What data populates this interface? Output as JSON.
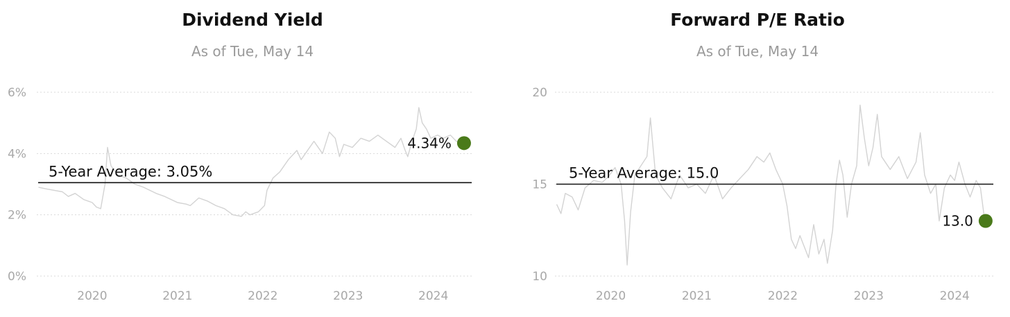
{
  "chart_data": [
    {
      "type": "line",
      "title": "Dividend Yield",
      "subtitle": "As of Tue, May 14",
      "y_ticks": [
        "0%",
        "2%",
        "4%",
        "6%"
      ],
      "y_tick_values": [
        0,
        2,
        4,
        6
      ],
      "ylim": [
        0,
        6
      ],
      "x_ticks": [
        "2020",
        "2021",
        "2022",
        "2023",
        "2024"
      ],
      "xlim": [
        2019.35,
        2024.45
      ],
      "grid": true,
      "series": [
        {
          "line_color": "#d3d3d3",
          "points": [
            [
              2019.37,
              2.9
            ],
            [
              2019.45,
              2.85
            ],
            [
              2019.55,
              2.8
            ],
            [
              2019.65,
              2.75
            ],
            [
              2019.72,
              2.6
            ],
            [
              2019.8,
              2.7
            ],
            [
              2019.9,
              2.5
            ],
            [
              2020.0,
              2.4
            ],
            [
              2020.05,
              2.25
            ],
            [
              2020.1,
              2.2
            ],
            [
              2020.15,
              3.0
            ],
            [
              2020.18,
              4.2
            ],
            [
              2020.22,
              3.6
            ],
            [
              2020.3,
              3.3
            ],
            [
              2020.4,
              3.2
            ],
            [
              2020.5,
              3.0
            ],
            [
              2020.6,
              2.9
            ],
            [
              2020.75,
              2.7
            ],
            [
              2020.85,
              2.6
            ],
            [
              2021.0,
              2.4
            ],
            [
              2021.1,
              2.35
            ],
            [
              2021.15,
              2.3
            ],
            [
              2021.25,
              2.55
            ],
            [
              2021.35,
              2.45
            ],
            [
              2021.45,
              2.3
            ],
            [
              2021.55,
              2.2
            ],
            [
              2021.65,
              2.0
            ],
            [
              2021.75,
              1.95
            ],
            [
              2021.8,
              2.1
            ],
            [
              2021.85,
              2.0
            ],
            [
              2021.95,
              2.1
            ],
            [
              2022.02,
              2.3
            ],
            [
              2022.05,
              2.8
            ],
            [
              2022.12,
              3.2
            ],
            [
              2022.2,
              3.4
            ],
            [
              2022.3,
              3.8
            ],
            [
              2022.4,
              4.1
            ],
            [
              2022.45,
              3.8
            ],
            [
              2022.55,
              4.2
            ],
            [
              2022.6,
              4.4
            ],
            [
              2022.7,
              4.0
            ],
            [
              2022.78,
              4.7
            ],
            [
              2022.85,
              4.5
            ],
            [
              2022.9,
              3.9
            ],
            [
              2022.95,
              4.3
            ],
            [
              2023.05,
              4.2
            ],
            [
              2023.15,
              4.5
            ],
            [
              2023.25,
              4.4
            ],
            [
              2023.35,
              4.6
            ],
            [
              2023.45,
              4.4
            ],
            [
              2023.55,
              4.2
            ],
            [
              2023.62,
              4.5
            ],
            [
              2023.67,
              4.1
            ],
            [
              2023.7,
              3.9
            ],
            [
              2023.75,
              4.4
            ],
            [
              2023.8,
              4.8
            ],
            [
              2023.83,
              5.5
            ],
            [
              2023.87,
              5.0
            ],
            [
              2023.92,
              4.8
            ],
            [
              2023.97,
              4.5
            ],
            [
              2024.05,
              4.6
            ],
            [
              2024.12,
              4.5
            ],
            [
              2024.2,
              4.6
            ],
            [
              2024.27,
              4.4
            ],
            [
              2024.34,
              4.34
            ]
          ]
        }
      ],
      "average": {
        "label": "5-Year Average: 3.05%",
        "value": 3.05
      },
      "current": {
        "label": "4.34%",
        "x": 2024.36,
        "value": 4.34,
        "color": "#4a7a1a"
      }
    },
    {
      "type": "line",
      "title": "Forward P/E Ratio",
      "subtitle": "As of Tue, May 14",
      "y_ticks": [
        "10",
        "15",
        "20"
      ],
      "y_tick_values": [
        10,
        15,
        20
      ],
      "ylim": [
        10,
        20
      ],
      "x_ticks": [
        "2020",
        "2021",
        "2022",
        "2023",
        "2024"
      ],
      "xlim": [
        2019.35,
        2024.45
      ],
      "grid": true,
      "series": [
        {
          "line_color": "#d3d3d3",
          "points": [
            [
              2019.37,
              13.9
            ],
            [
              2019.42,
              13.4
            ],
            [
              2019.47,
              14.5
            ],
            [
              2019.55,
              14.3
            ],
            [
              2019.62,
              13.6
            ],
            [
              2019.7,
              14.8
            ],
            [
              2019.8,
              15.2
            ],
            [
              2019.9,
              15.1
            ],
            [
              2019.97,
              15.4
            ],
            [
              2020.05,
              15.9
            ],
            [
              2020.12,
              15.0
            ],
            [
              2020.16,
              13.0
            ],
            [
              2020.19,
              10.6
            ],
            [
              2020.23,
              13.5
            ],
            [
              2020.28,
              15.5
            ],
            [
              2020.35,
              16.0
            ],
            [
              2020.42,
              16.5
            ],
            [
              2020.46,
              18.6
            ],
            [
              2020.52,
              15.5
            ],
            [
              2020.6,
              14.8
            ],
            [
              2020.7,
              14.2
            ],
            [
              2020.8,
              15.5
            ],
            [
              2020.9,
              14.8
            ],
            [
              2021.0,
              15.0
            ],
            [
              2021.1,
              14.5
            ],
            [
              2021.2,
              15.5
            ],
            [
              2021.3,
              14.2
            ],
            [
              2021.4,
              14.8
            ],
            [
              2021.5,
              15.3
            ],
            [
              2021.6,
              15.8
            ],
            [
              2021.7,
              16.5
            ],
            [
              2021.78,
              16.2
            ],
            [
              2021.85,
              16.7
            ],
            [
              2021.92,
              15.8
            ],
            [
              2022.0,
              15.0
            ],
            [
              2022.05,
              13.8
            ],
            [
              2022.1,
              12.0
            ],
            [
              2022.15,
              11.5
            ],
            [
              2022.2,
              12.2
            ],
            [
              2022.3,
              11.0
            ],
            [
              2022.36,
              12.8
            ],
            [
              2022.42,
              11.2
            ],
            [
              2022.48,
              12.0
            ],
            [
              2022.52,
              10.7
            ],
            [
              2022.58,
              12.5
            ],
            [
              2022.62,
              15.0
            ],
            [
              2022.66,
              16.3
            ],
            [
              2022.7,
              15.5
            ],
            [
              2022.75,
              13.2
            ],
            [
              2022.8,
              15.0
            ],
            [
              2022.86,
              16.0
            ],
            [
              2022.9,
              19.3
            ],
            [
              2022.95,
              17.5
            ],
            [
              2023.0,
              16.0
            ],
            [
              2023.05,
              17.0
            ],
            [
              2023.1,
              18.8
            ],
            [
              2023.15,
              16.5
            ],
            [
              2023.25,
              15.8
            ],
            [
              2023.35,
              16.5
            ],
            [
              2023.45,
              15.3
            ],
            [
              2023.55,
              16.2
            ],
            [
              2023.6,
              17.8
            ],
            [
              2023.65,
              15.5
            ],
            [
              2023.72,
              14.5
            ],
            [
              2023.78,
              15.0
            ],
            [
              2023.82,
              13.0
            ],
            [
              2023.88,
              14.8
            ],
            [
              2023.95,
              15.5
            ],
            [
              2024.0,
              15.2
            ],
            [
              2024.05,
              16.2
            ],
            [
              2024.12,
              15.0
            ],
            [
              2024.18,
              14.3
            ],
            [
              2024.25,
              15.2
            ],
            [
              2024.3,
              14.8
            ],
            [
              2024.35,
              13.0
            ]
          ]
        }
      ],
      "average": {
        "label": "5-Year Average: 15.0",
        "value": 15.0
      },
      "current": {
        "label": "13.0",
        "x": 2024.36,
        "value": 13.0,
        "color": "#4a7a1a"
      }
    }
  ]
}
